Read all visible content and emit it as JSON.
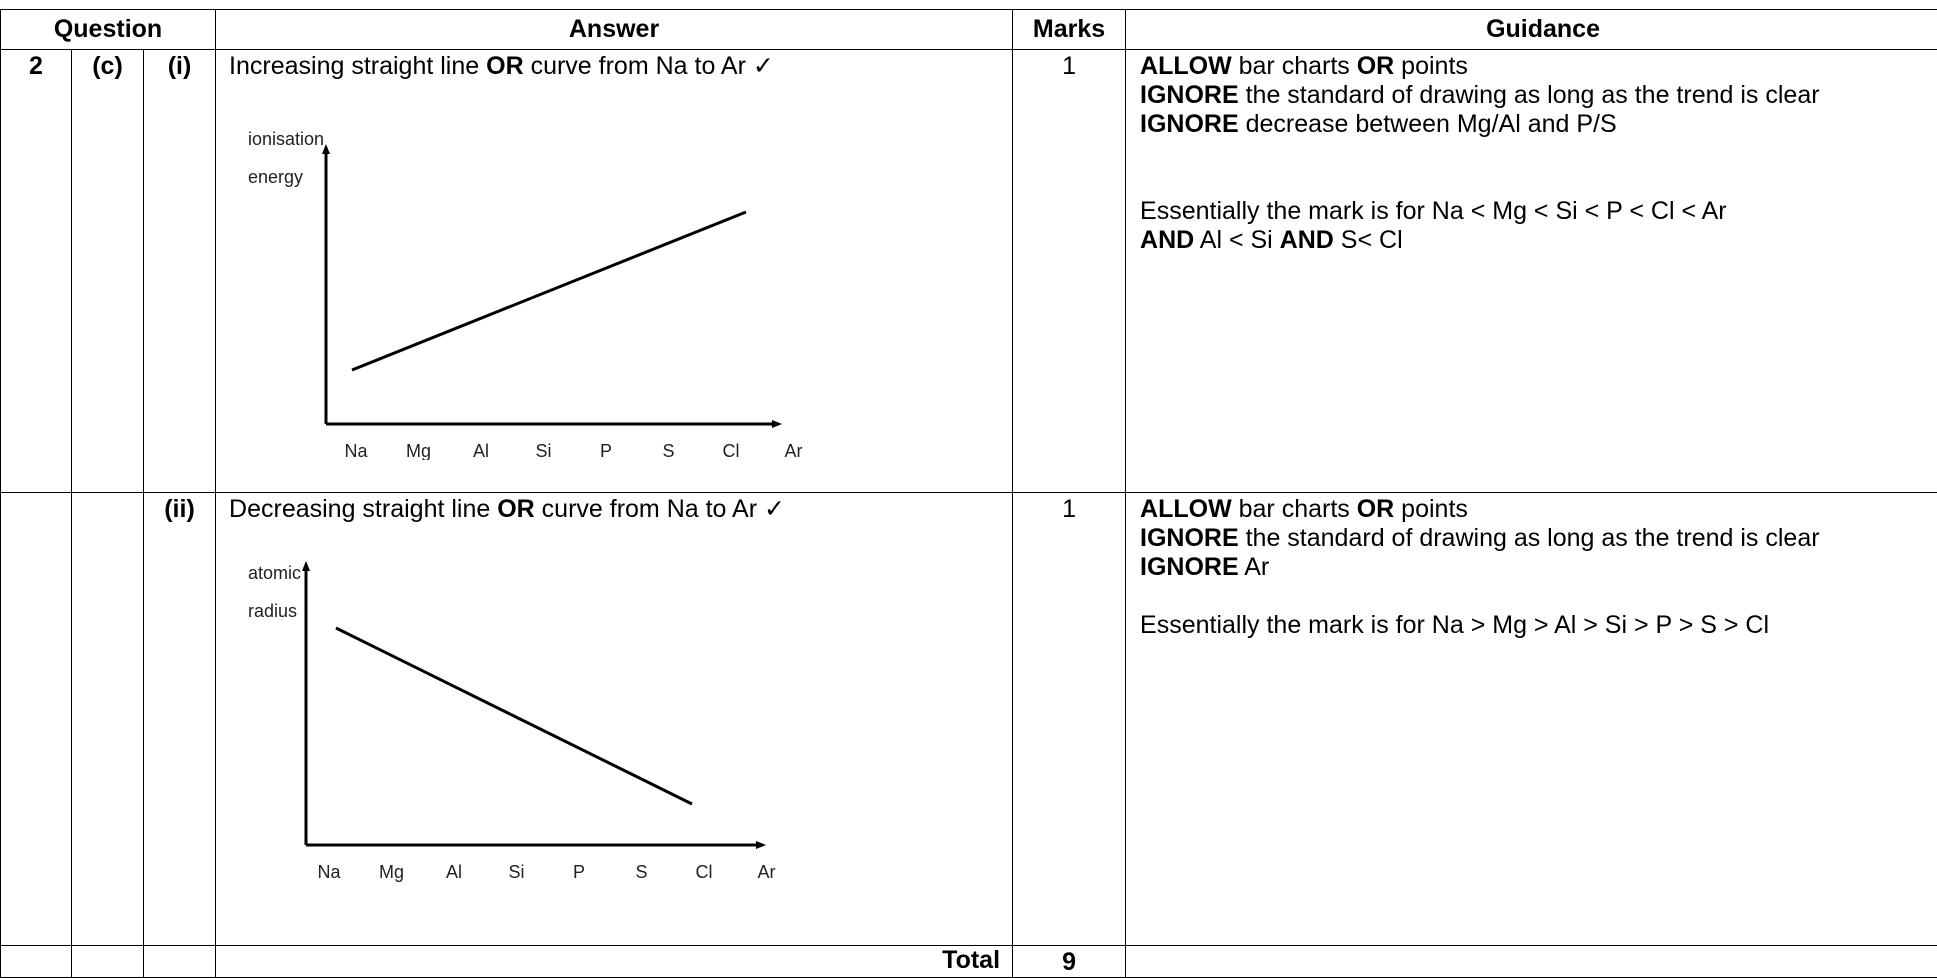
{
  "headers": {
    "question": "Question",
    "answer": "Answer",
    "marks": "Marks",
    "guidance": "Guidance"
  },
  "row1": {
    "q": "2",
    "part": "(c)",
    "sub": "(i)",
    "answer_pre": "Increasing straight line ",
    "answer_or": "OR",
    "answer_post": " curve from Na to Ar ✓",
    "marks": "1",
    "g1_kw": "ALLOW",
    "g1_a": " bar charts ",
    "g1_or": "OR",
    "g1_b": " points",
    "g2_kw": "IGNORE",
    "g2_text": " the standard of drawing as long as the trend is clear",
    "g3_kw": "IGNORE",
    "g3_text": " decrease between Mg/Al and P/S",
    "g4_text": "Essentially the mark is for Na < Mg < Si < P < Cl < Ar",
    "g5_kw1": "AND",
    "g5_a": " Al < Si ",
    "g5_kw2": "AND",
    "g5_b": " S< Cl"
  },
  "row2": {
    "sub": "(ii)",
    "answer_pre": "Decreasing straight line ",
    "answer_or": "OR",
    "answer_post": " curve from Na to Ar ✓",
    "marks": "1",
    "g1_kw": "ALLOW",
    "g1_a": " bar charts ",
    "g1_or": "OR",
    "g1_b": " points",
    "g2_kw": "IGNORE",
    "g2_text": " the standard of drawing as long as the trend is clear",
    "g3_kw": "IGNORE",
    "g3_text": " Ar",
    "g4_text": "Essentially the mark is for Na > Mg > Al > Si > P > S > Cl"
  },
  "total": {
    "label": "Total",
    "value": "9"
  },
  "chart_data": [
    {
      "type": "line",
      "ylabel_line1": "ionisation",
      "ylabel_line2": "energy",
      "categories": [
        "Na",
        "Mg",
        "Al",
        "Si",
        "P",
        "S",
        "Cl",
        "Ar"
      ],
      "trend": "increasing"
    },
    {
      "type": "line",
      "ylabel_line1": "atomic",
      "ylabel_line2": "radius",
      "categories": [
        "Na",
        "Mg",
        "Al",
        "Si",
        "P",
        "S",
        "Cl",
        "Ar"
      ],
      "trend": "decreasing"
    }
  ]
}
